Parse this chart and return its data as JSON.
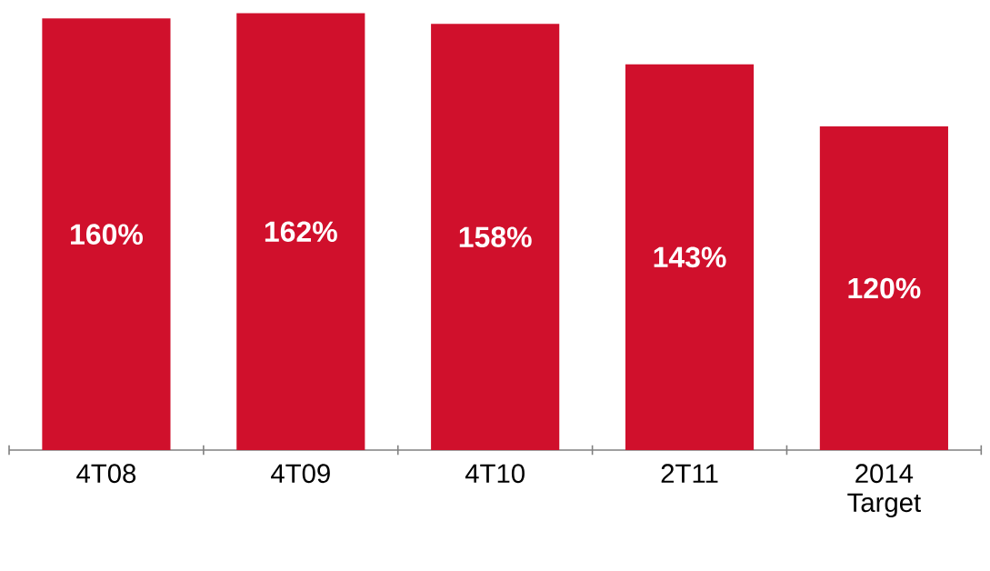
{
  "chart_data": {
    "type": "bar",
    "categories": [
      "4T08",
      "4T09",
      "4T10",
      "2T11",
      "2014 Target"
    ],
    "values": [
      160,
      162,
      158,
      143,
      120
    ],
    "value_labels": [
      "160%",
      "162%",
      "158%",
      "143%",
      "120%"
    ],
    "color": "#d0102c"
  }
}
